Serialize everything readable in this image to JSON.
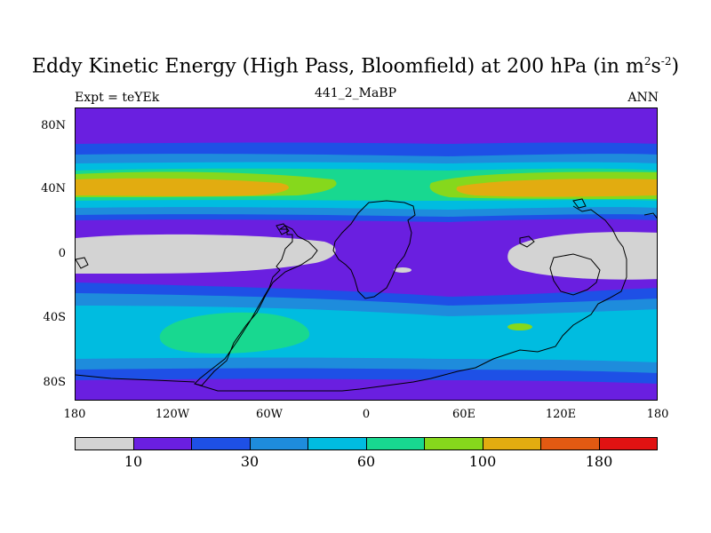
{
  "title": {
    "main": "Eddy Kinetic Energy (High Pass, Bloomfield) at 200 hPa (in m",
    "sup1": "2",
    "mid": "s",
    "sup2": "-2",
    "close": ")"
  },
  "left_label": "Expt = teYEk",
  "center_label": "441_2_MaBP",
  "right_label": "ANN",
  "lat_ticks": [
    "80N",
    "40N",
    "0",
    "40S",
    "80S"
  ],
  "lon_ticks": [
    "180",
    "120W",
    "60W",
    "0",
    "60E",
    "120E",
    "180"
  ],
  "colorbar": {
    "colors": [
      "#d3d3d3",
      "#6a1fe0",
      "#1e50e6",
      "#1e8cdc",
      "#00bce0",
      "#18d890",
      "#86d81c",
      "#e2ac10",
      "#e25a12",
      "#e01212"
    ],
    "labels": [
      "10",
      "30",
      "60",
      "100",
      "180"
    ]
  },
  "colors": {
    "gray": "#d3d3d3",
    "purple": "#6a1fe0",
    "blue": "#1e50e6",
    "midblue": "#1e8cdc",
    "cyan": "#00bce0",
    "green": "#18d890",
    "lime": "#86d81c",
    "orange": "#e2ac10"
  }
}
